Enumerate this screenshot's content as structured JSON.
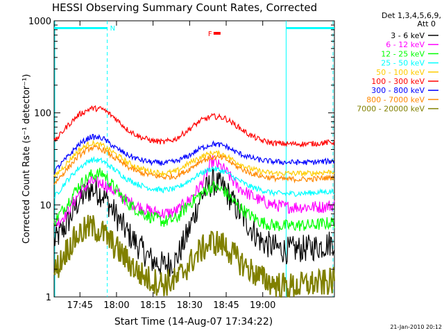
{
  "chart_data": {
    "type": "line",
    "title": "HESSI Observing Summary Count Rates, Corrected",
    "xlabel": "Start Time (14-Aug-07 17:34:22)",
    "ylabel": "Corrected Count Rate (s⁻¹ detector⁻¹)",
    "yscale": "log",
    "ylim": [
      1,
      1000
    ],
    "xlim_minutes": [
      0,
      115
    ],
    "x_ticks": [
      {
        "label": "17:45",
        "minutes": 10.6
      },
      {
        "label": "18:00",
        "minutes": 25.6
      },
      {
        "label": "18:15",
        "minutes": 40.6
      },
      {
        "label": "18:30",
        "minutes": 55.6
      },
      {
        "label": "18:45",
        "minutes": 70.6
      },
      {
        "label": "19:00",
        "minutes": 85.6
      }
    ],
    "y_ticks": [
      {
        "label": "1",
        "value": 1
      },
      {
        "label": "10",
        "value": 10
      },
      {
        "label": "100",
        "value": 100
      },
      {
        "label": "1000",
        "value": 1000
      }
    ],
    "legend_title": "Det 1,3,4,5,6,9,",
    "legend_subtitle": "Att 0",
    "legend_position": "right",
    "grid": false,
    "annotations": [
      {
        "label": "N",
        "color": "#00ffff",
        "minutes": 21.8
      },
      {
        "label": "F",
        "color": "#ff0000",
        "minutes": 66.0
      }
    ],
    "footer_timestamp": "21-Jan-2010 20:12",
    "x": [
      0,
      5,
      10,
      15,
      20,
      25,
      30,
      35,
      40,
      45,
      50,
      55,
      60,
      65,
      70,
      75,
      80,
      85,
      90,
      95,
      100,
      105,
      110,
      115
    ],
    "series": [
      {
        "name": "3 - 6 keV",
        "color": "#000000",
        "values": [
          4,
          6,
          11,
          15,
          13,
          8,
          5,
          3.5,
          2.5,
          2.2,
          2.5,
          5,
          12,
          18,
          15,
          9,
          6,
          4,
          3.5,
          3.2,
          3.3,
          3.4,
          3.6,
          4
        ]
      },
      {
        "name": "6 - 12 keV",
        "color": "#ff00ff",
        "values": [
          6,
          8,
          13,
          18,
          17,
          14,
          11,
          9.5,
          8.5,
          8,
          8.5,
          11,
          16,
          30,
          24,
          16,
          13,
          11,
          10,
          9.5,
          9.5,
          9.5,
          9.5,
          10
        ]
      },
      {
        "name": "12 - 25 keV",
        "color": "#00ff00",
        "values": [
          6.5,
          10,
          16,
          21,
          22,
          15,
          10.5,
          8.5,
          7.3,
          6.6,
          7,
          10,
          13,
          16,
          14,
          10,
          7.8,
          6.5,
          6,
          5.9,
          6,
          6,
          6.2,
          6.5
        ]
      },
      {
        "name": "25 - 50 keV",
        "color": "#00ffff",
        "values": [
          12,
          18,
          25,
          31,
          30,
          24,
          19,
          16.5,
          15,
          14.5,
          15,
          18,
          22,
          25,
          23,
          19,
          16,
          14.5,
          13.5,
          13.2,
          13.3,
          13.5,
          13.8,
          14
        ]
      },
      {
        "name": "50 - 100 keV",
        "color": "#ffcc00",
        "values": [
          20,
          28,
          39,
          47,
          44,
          36,
          29,
          25,
          23,
          22,
          23,
          28,
          33,
          37,
          35,
          29,
          25,
          23,
          22,
          22,
          22,
          22,
          22.5,
          23
        ]
      },
      {
        "name": "100 - 300 keV",
        "color": "#ff0000",
        "values": [
          48,
          70,
          95,
          112,
          110,
          88,
          66,
          55,
          50,
          48,
          52,
          65,
          82,
          92,
          88,
          72,
          58,
          50,
          47,
          46,
          46,
          46,
          47,
          48
        ]
      },
      {
        "name": "300 - 800 keV",
        "color": "#0000ff",
        "values": [
          23,
          32,
          45,
          55,
          53,
          42,
          35,
          31,
          29,
          28.5,
          29.5,
          34,
          41,
          46,
          44,
          37,
          33,
          30.5,
          29.5,
          29,
          29,
          29,
          29.5,
          30
        ]
      },
      {
        "name": "800 - 7000 keV",
        "color": "#ff8800",
        "values": [
          17,
          24,
          34,
          42,
          40,
          32,
          26,
          22.5,
          21,
          20,
          20.5,
          24,
          30,
          33,
          32,
          26,
          22.5,
          20.5,
          19.5,
          19,
          19,
          19,
          19.5,
          20
        ]
      },
      {
        "name": "7000 - 20000 keV",
        "color": "#808000",
        "values": [
          1.8,
          3.2,
          4.8,
          5.8,
          5,
          3.5,
          2.5,
          1.8,
          1.5,
          1.4,
          1.5,
          2.2,
          3.2,
          4,
          3.6,
          2.6,
          2,
          1.6,
          1.4,
          1.3,
          1.3,
          1.4,
          1.4,
          1.5
        ]
      }
    ]
  }
}
